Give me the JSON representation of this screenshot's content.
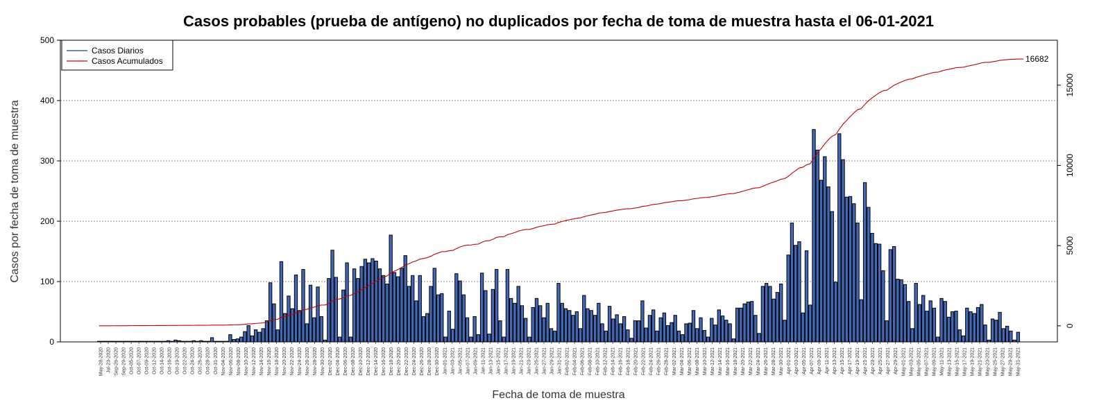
{
  "chart_data": {
    "type": "bar",
    "title": "Casos probables (prueba de antígeno) no duplicados por fecha de toma de muestra hasta el 06-01-2021",
    "xlabel": "Fecha de toma de muestra",
    "ylabel": "Casos por fecha de toma de muestra",
    "ylim": [
      0,
      500
    ],
    "yticks": [
      0,
      100,
      200,
      300,
      400,
      500
    ],
    "y2lim": [
      -1000,
      17800
    ],
    "y2ticks": [
      0,
      5000,
      10000,
      15000
    ],
    "grid": "horizontal-dotted",
    "legend": {
      "placement": "top-left",
      "items": [
        {
          "label": "Casos Diarios",
          "color": "#1f3f8a"
        },
        {
          "label": "Casos Acumulados",
          "color": "#c00000"
        }
      ]
    },
    "colors": {
      "bar_fill": "#4169b8",
      "bar_stroke": "#000000",
      "cumulative_line": "#c00000",
      "grid": "#888888"
    },
    "cumulative_end_label": "16682",
    "x_start": "2020-05-28",
    "tick_labels": [
      "May-28-2020",
      "Jul-23-2020",
      "Sep-26-2020",
      "Sep-29-2020",
      "Oct-05-2020",
      "Oct-07-2020",
      "Oct-09-2020",
      "Oct-12-2020",
      "Oct-14-2020",
      "Oct-16-2020",
      "Oct-19-2020",
      "Oct-22-2020",
      "Oct-24-2020",
      "Oct-26-2020",
      "Oct-28-2020",
      "Oct-31-2020",
      "Nov-04-2020",
      "Nov-06-2020",
      "Nov-08-2020",
      "Nov-10-2020",
      "Nov-12-2020",
      "Nov-14-2020",
      "Nov-16-2020",
      "Nov-18-2020",
      "Nov-20-2020",
      "Nov-22-2020",
      "Nov-24-2020",
      "Nov-26-2020",
      "Nov-28-2020",
      "Nov-30-2020",
      "Dec-02-2020",
      "Dec-04-2020",
      "Dec-06-2020",
      "Dec-08-2020",
      "Dec-10-2020",
      "Dec-12-2020",
      "Dec-14-2020",
      "Dec-16-2020",
      "Dec-18-2020",
      "Dec-20-2020",
      "Dec-22-2020",
      "Dec-24-2020",
      "Dec-26-2020",
      "Dec-28-2020",
      "Dec-30-2020",
      "Jan-01-2021",
      "Jan-03-2021",
      "Jan-05-2021",
      "Jan-07-2021",
      "Jan-09-2021",
      "Jan-11-2021",
      "Jan-13-2021",
      "Jan-15-2021",
      "Jan-17-2021",
      "Jan-19-2021",
      "Jan-21-2021",
      "Jan-23-2021",
      "Jan-25-2021",
      "Jan-27-2021",
      "Jan-29-2021",
      "Jan-31-2021",
      "Feb-02-2021",
      "Feb-04-2021",
      "Feb-06-2021",
      "Feb-08-2021",
      "Feb-10-2021",
      "Feb-12-2021",
      "Feb-14-2021",
      "Feb-16-2021",
      "Feb-18-2021",
      "Feb-20-2021",
      "Feb-22-2021",
      "Feb-24-2021",
      "Feb-26-2021",
      "Feb-28-2021",
      "Mar-02-2021",
      "Mar-04-2021",
      "Mar-06-2021",
      "Mar-08-2021",
      "Mar-10-2021",
      "Mar-12-2021",
      "Mar-14-2021",
      "Mar-16-2021",
      "Mar-18-2021",
      "Mar-20-2021",
      "Mar-22-2021",
      "Mar-24-2021",
      "Mar-26-2021",
      "Mar-28-2021",
      "Mar-30-2021",
      "Apr-01-2021",
      "Apr-03-2021",
      "Apr-05-2021",
      "Apr-07-2021",
      "Apr-09-2021",
      "Apr-11-2021",
      "Apr-13-2021",
      "Apr-15-2021",
      "Apr-17-2021",
      "Apr-19-2021",
      "Apr-21-2021",
      "Apr-23-2021",
      "Apr-25-2021",
      "Apr-27-2021",
      "Apr-29-2021",
      "May-01-2021",
      "May-03-2021",
      "May-05-2021",
      "May-07-2021",
      "May-09-2021",
      "May-11-2021",
      "May-13-2021",
      "May-15-2021",
      "May-17-2021",
      "May-19-2021",
      "May-21-2021",
      "May-23-2021",
      "May-25-2021",
      "May-27-2021",
      "May-29-2021",
      "May-31-2021"
    ],
    "daily_values": [
      1,
      1,
      1,
      1,
      1,
      1,
      1,
      1,
      1,
      1,
      1,
      1,
      1,
      1,
      1,
      1,
      1,
      1,
      1,
      2,
      1,
      3,
      2,
      1,
      1,
      1,
      2,
      1,
      2,
      1,
      1,
      7,
      1,
      1,
      1,
      1,
      12,
      4,
      5,
      8,
      17,
      27,
      10,
      20,
      16,
      22,
      35,
      98,
      63,
      20,
      133,
      47,
      76,
      55,
      111,
      52,
      120,
      30,
      94,
      40,
      91,
      42,
      3,
      105,
      152,
      107,
      8,
      86,
      131,
      8,
      121,
      105,
      125,
      137,
      131,
      138,
      134,
      121,
      110,
      96,
      177,
      115,
      108,
      122,
      143,
      92,
      110,
      68,
      110,
      42,
      47,
      92,
      122,
      78,
      80,
      8,
      51,
      21,
      113,
      101,
      78,
      40,
      8,
      42,
      12,
      114,
      85,
      13,
      87,
      120,
      35,
      8,
      120,
      72,
      64,
      92,
      60,
      39,
      8,
      57,
      72,
      60,
      40,
      64,
      22,
      18,
      97,
      64,
      55,
      52,
      44,
      50,
      22,
      77,
      55,
      52,
      44,
      64,
      30,
      18,
      59,
      38,
      45,
      30,
      42,
      20,
      6,
      35,
      35,
      68,
      23,
      44,
      53,
      18,
      40,
      48,
      27,
      32,
      44,
      18,
      12,
      30,
      31,
      52,
      22,
      40,
      19,
      8,
      39,
      28,
      53,
      43,
      36,
      30,
      5,
      56,
      56,
      63,
      66,
      67,
      44,
      14,
      92,
      97,
      92,
      71,
      82,
      96,
      36,
      144,
      197,
      160,
      166,
      48,
      151,
      61,
      352,
      318,
      268,
      307,
      257,
      216,
      99,
      345,
      302,
      240,
      241,
      229,
      197,
      70,
      264,
      223,
      180,
      163,
      162,
      118,
      35,
      153,
      158,
      104,
      103,
      95,
      67,
      22,
      97,
      62,
      77,
      51,
      68,
      56,
      8,
      72,
      67,
      41,
      50,
      51,
      20,
      10,
      56,
      50,
      47,
      57,
      62,
      28,
      3,
      38,
      36,
      49,
      22,
      26,
      18,
      3,
      16
    ]
  }
}
